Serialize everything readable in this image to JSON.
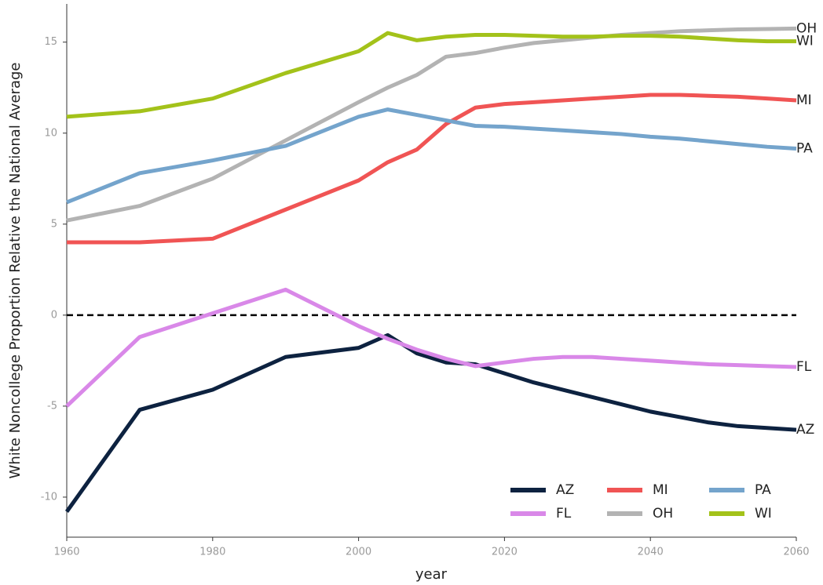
{
  "chart_data": {
    "type": "line",
    "x_label": "year",
    "y_label": "White Noncollege Proportion Relative the National Average",
    "x": [
      1960,
      1970,
      1980,
      1990,
      2000,
      2004,
      2008,
      2012,
      2016,
      2020,
      2024,
      2028,
      2032,
      2036,
      2040,
      2044,
      2048,
      2052,
      2056,
      2060
    ],
    "series": [
      {
        "name": "AZ",
        "color": "#0d2240",
        "values": [
          -10.8,
          -5.2,
          -4.1,
          -2.3,
          -1.8,
          -1.1,
          -2.1,
          -2.6,
          -2.7,
          -3.2,
          -3.7,
          -4.1,
          -4.5,
          -4.9,
          -5.3,
          -5.6,
          -5.9,
          -6.1,
          -6.2,
          -6.3
        ]
      },
      {
        "name": "FL",
        "color": "#d988e8",
        "values": [
          -5.0,
          -1.2,
          0.1,
          1.4,
          -0.6,
          -1.3,
          -1.9,
          -2.4,
          -2.8,
          -2.6,
          -2.4,
          -2.3,
          -2.3,
          -2.4,
          -2.5,
          -2.6,
          -2.7,
          -2.75,
          -2.8,
          -2.85
        ]
      },
      {
        "name": "MI",
        "color": "#f05454",
        "values": [
          4.0,
          4.0,
          4.2,
          5.8,
          7.4,
          8.4,
          9.1,
          10.5,
          11.4,
          11.6,
          11.7,
          11.8,
          11.9,
          12.0,
          12.1,
          12.1,
          12.05,
          12.0,
          11.9,
          11.8
        ]
      },
      {
        "name": "OH",
        "color": "#b3b3b3",
        "values": [
          5.2,
          6.0,
          7.5,
          9.6,
          11.7,
          12.5,
          13.2,
          14.2,
          14.4,
          14.7,
          14.95,
          15.1,
          15.25,
          15.4,
          15.5,
          15.6,
          15.65,
          15.7,
          15.72,
          15.75
        ]
      },
      {
        "name": "PA",
        "color": "#74a4cc",
        "values": [
          6.2,
          7.8,
          8.5,
          9.3,
          10.9,
          11.3,
          11.0,
          10.7,
          10.4,
          10.35,
          10.25,
          10.15,
          10.05,
          9.95,
          9.8,
          9.7,
          9.55,
          9.4,
          9.25,
          9.15
        ]
      },
      {
        "name": "WI",
        "color": "#a3c21a",
        "values": [
          10.9,
          11.2,
          11.9,
          13.3,
          14.5,
          15.5,
          15.1,
          15.3,
          15.4,
          15.4,
          15.35,
          15.3,
          15.3,
          15.35,
          15.35,
          15.3,
          15.2,
          15.1,
          15.05,
          15.05
        ]
      }
    ],
    "reference_line": 0,
    "xlim": [
      1960,
      2060
    ],
    "xticks": [
      1960,
      1980,
      2000,
      2020,
      2040,
      2060
    ],
    "ylim": [
      -12.2,
      17.1
    ],
    "yticks": [
      -10,
      -5,
      0,
      5,
      10,
      15
    ],
    "grid": false,
    "legend": "lower right"
  }
}
